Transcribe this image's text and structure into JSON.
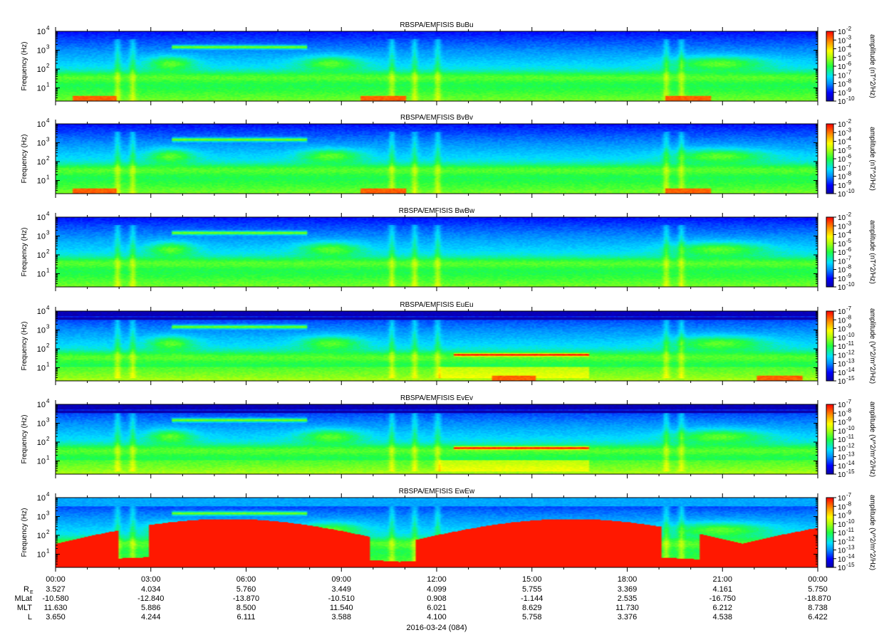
{
  "chart_data": [
    {
      "type": "heatmap",
      "title": "RBSPA/EMFISIS  BuBu",
      "ylabel": "Frequency (Hz)",
      "ylim": [
        2,
        10000
      ],
      "yscale": "log",
      "yticks": [
        10,
        100,
        1000,
        10000
      ],
      "colorbar": {
        "label": "amplitude (nT^2/Hz)",
        "range": [
          1e-10,
          0.01
        ],
        "ticks": [
          "-2",
          "-3",
          "-4",
          "-5",
          "-6",
          "-7",
          "-8",
          "-9",
          "-10"
        ]
      },
      "features": {
        "banded": false,
        "rising_red": false,
        "red_spots": [
          0.05,
          0.43,
          0.83
        ]
      }
    },
    {
      "type": "heatmap",
      "title": "RBSPA/EMFISIS  BvBv",
      "ylabel": "Frequency (Hz)",
      "ylim": [
        2,
        10000
      ],
      "yscale": "log",
      "yticks": [
        10,
        100,
        1000,
        10000
      ],
      "colorbar": {
        "label": "amplitude (nT^2/Hz)",
        "range": [
          1e-10,
          0.01
        ],
        "ticks": [
          "-2",
          "-3",
          "-4",
          "-5",
          "-6",
          "-7",
          "-8",
          "-9",
          "-10"
        ]
      },
      "features": {
        "banded": false,
        "rising_red": false,
        "red_spots": [
          0.05,
          0.43,
          0.83
        ]
      }
    },
    {
      "type": "heatmap",
      "title": "RBSPA/EMFISIS  BwBw",
      "ylabel": "Frequency (Hz)",
      "ylim": [
        2,
        10000
      ],
      "yscale": "log",
      "yticks": [
        10,
        100,
        1000,
        10000
      ],
      "colorbar": {
        "label": "amplitude (nT^2/Hz)",
        "range": [
          1e-10,
          0.01
        ],
        "ticks": [
          "-2",
          "-3",
          "-4",
          "-5",
          "-6",
          "-7",
          "-8",
          "-9",
          "-10"
        ]
      },
      "features": {
        "banded": false,
        "rising_red": false,
        "red_spots": []
      }
    },
    {
      "type": "heatmap",
      "title": "RBSPA/EMFISIS  EuEu",
      "ylabel": "Frequency (Hz)",
      "ylim": [
        2,
        10000
      ],
      "yscale": "log",
      "yticks": [
        10,
        100,
        1000,
        10000
      ],
      "colorbar": {
        "label": "amplitude (V^2/m^2/Hz)",
        "range": [
          1e-15,
          1e-07
        ],
        "ticks": [
          "-7",
          "-8",
          "-9",
          "-10",
          "-11",
          "-12",
          "-13",
          "-14",
          "-15"
        ]
      },
      "features": {
        "banded": true,
        "rising_red": false,
        "red_spots": [
          0.6,
          0.95
        ]
      }
    },
    {
      "type": "heatmap",
      "title": "RBSPA/EMFISIS  EvEv",
      "ylabel": "Frequency (Hz)",
      "ylim": [
        2,
        10000
      ],
      "yscale": "log",
      "yticks": [
        10,
        100,
        1000,
        10000
      ],
      "colorbar": {
        "label": "amplitude (V^2/m^2/Hz)",
        "range": [
          1e-15,
          1e-07
        ],
        "ticks": [
          "-7",
          "-8",
          "-9",
          "-10",
          "-11",
          "-12",
          "-13",
          "-14",
          "-15"
        ]
      },
      "features": {
        "banded": true,
        "rising_red": false,
        "red_spots": []
      }
    },
    {
      "type": "heatmap",
      "title": "RBSPA/EMFISIS  EwEw",
      "ylabel": "Frequency (Hz)",
      "ylim": [
        2,
        10000
      ],
      "yscale": "log",
      "yticks": [
        10,
        100,
        1000,
        10000
      ],
      "colorbar": {
        "label": "amplitude (V^2/m^2/Hz)",
        "range": [
          1e-15,
          1e-07
        ],
        "ticks": [
          "-7",
          "-8",
          "-9",
          "-10",
          "-11",
          "-12",
          "-13",
          "-14",
          "-15"
        ]
      },
      "features": {
        "banded": false,
        "rising_red": true,
        "red_spots": []
      }
    }
  ],
  "xaxis": {
    "tick_labels": [
      "00:00",
      "03:00",
      "06:00",
      "09:00",
      "12:00",
      "15:00",
      "18:00",
      "21:00",
      "00:00"
    ],
    "date_label": "2016-03-24 (084)"
  },
  "ephemeris": [
    {
      "label": "R",
      "subscript": "E",
      "values": [
        "3.527",
        "4.034",
        "5.760",
        "3.449",
        "4.099",
        "5.755",
        "3.369",
        "4.161",
        "5.750"
      ]
    },
    {
      "label": "MLat",
      "subscript": "",
      "values": [
        "-10.580",
        "-12.840",
        "-13.870",
        "-10.510",
        "0.908",
        "-1.144",
        "2.535",
        "-16.750",
        "-18.870"
      ]
    },
    {
      "label": "MLT",
      "subscript": "",
      "values": [
        "11.630",
        "5.886",
        "8.500",
        "11.540",
        "6.021",
        "8.629",
        "11.730",
        "6.212",
        "8.738"
      ]
    },
    {
      "label": "L",
      "subscript": "",
      "values": [
        "3.650",
        "4.244",
        "6.111",
        "3.588",
        "4.100",
        "5.758",
        "3.376",
        "4.538",
        "6.422"
      ]
    }
  ]
}
